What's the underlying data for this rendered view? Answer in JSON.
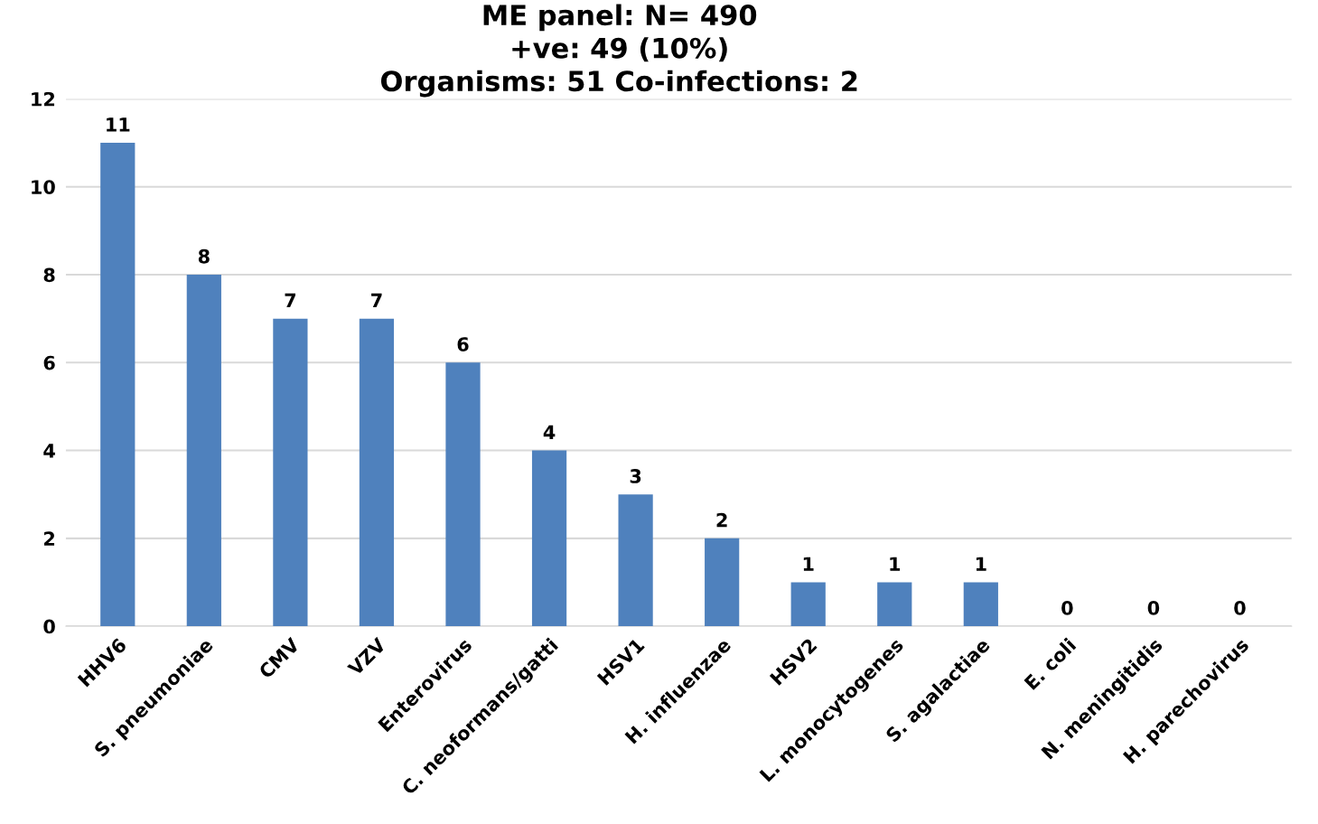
{
  "chart_data": {
    "type": "bar",
    "title": "ME panel: N= 490\n+ve: 49 (10%)\nOrganisms: 51 Co-infections: 2",
    "categories": [
      "HHV6",
      "S. pneumoniae",
      "CMV",
      "VZV",
      "Enterovirus",
      "C. neoformans/gatti",
      "HSV1",
      "H. influenzae",
      "HSV2",
      "L. monocytogenes",
      "S. agalactiae",
      "E. coli",
      "N. meningitidis",
      "H. parechovirus"
    ],
    "values": [
      11,
      8,
      7,
      7,
      6,
      4,
      3,
      2,
      1,
      1,
      1,
      0,
      0,
      0
    ],
    "color": "#4f81bd",
    "ylim": [
      0,
      12
    ],
    "yticks": [
      0,
      2,
      4,
      6,
      8,
      10,
      12
    ],
    "grid": "y",
    "data_labels": true,
    "legend": false
  }
}
